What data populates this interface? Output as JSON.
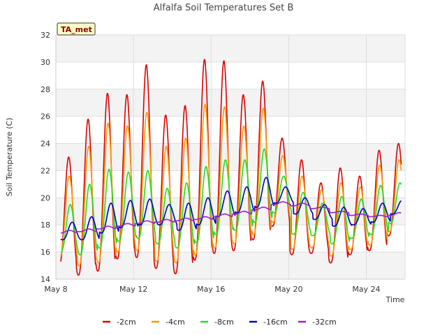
{
  "chart_data": {
    "type": "line",
    "title": "Alfalfa Soil Temperatures Set B",
    "xlabel": "Time",
    "ylabel": "Soil Temperature (C)",
    "ylim": [
      14,
      32
    ],
    "yticks": [
      14,
      16,
      18,
      20,
      22,
      24,
      26,
      28,
      30,
      32
    ],
    "xlim": [
      "2013-05-08",
      "2013-05-26"
    ],
    "xticks": [
      {
        "date": "2013-05-08",
        "label": "May 8"
      },
      {
        "date": "2013-05-12",
        "label": "May 12"
      },
      {
        "date": "2013-05-16",
        "label": "May 16"
      },
      {
        "date": "2013-05-20",
        "label": "May 20"
      },
      {
        "date": "2013-05-24",
        "label": "May 24"
      }
    ],
    "grid": true,
    "legend_position": "bottom",
    "badge": "TA_met",
    "daily_extremes_note": "Each series listed as daily [min, max] from May 8 to May 25",
    "series": [
      {
        "name": "-2cm",
        "color": "#dd0000",
        "daily_min": [
          15.0,
          14.3,
          14.6,
          15.5,
          15.6,
          14.8,
          14.4,
          15.4,
          15.9,
          16.1,
          16.9,
          17.9,
          15.8,
          15.9,
          15.2,
          15.8,
          16.1,
          17.2
        ],
        "daily_max": [
          23.0,
          25.8,
          27.7,
          27.6,
          29.8,
          26.1,
          26.8,
          30.2,
          30.1,
          27.6,
          28.6,
          24.4,
          22.8,
          21.1,
          22.2,
          21.6,
          23.5,
          24.0
        ]
      },
      {
        "name": "-4cm",
        "color": "#ff9900",
        "daily_min": [
          15.6,
          15.0,
          15.2,
          16.0,
          16.1,
          15.3,
          15.2,
          15.8,
          16.3,
          16.6,
          17.3,
          18.2,
          16.2,
          16.3,
          15.7,
          16.2,
          16.5,
          17.5
        ],
        "daily_max": [
          21.6,
          23.8,
          25.5,
          25.3,
          26.3,
          23.8,
          24.4,
          26.9,
          26.7,
          25.3,
          26.6,
          23.1,
          21.6,
          20.6,
          21.1,
          20.8,
          22.4,
          22.8
        ]
      },
      {
        "name": "-8cm",
        "color": "#22dd22",
        "daily_min": [
          16.0,
          15.8,
          16.3,
          16.8,
          17.0,
          16.6,
          16.3,
          16.7,
          17.3,
          17.6,
          18.2,
          18.9,
          17.3,
          17.2,
          16.6,
          17.0,
          17.3,
          18.1
        ],
        "daily_max": [
          19.5,
          21.0,
          22.1,
          21.9,
          22.0,
          20.7,
          21.1,
          22.3,
          22.8,
          22.8,
          23.6,
          21.6,
          20.4,
          19.6,
          20.1,
          19.9,
          20.9,
          21.1
        ]
      },
      {
        "name": "-16cm",
        "color": "#0000bb",
        "daily_min": [
          16.9,
          16.9,
          17.4,
          17.8,
          18.0,
          18.0,
          17.6,
          18.0,
          18.6,
          18.9,
          19.3,
          19.6,
          18.8,
          18.4,
          17.9,
          18.0,
          18.2,
          18.8
        ],
        "daily_max": [
          18.2,
          18.6,
          19.6,
          19.8,
          19.9,
          19.5,
          19.6,
          20.0,
          20.5,
          20.8,
          21.5,
          20.8,
          20.0,
          19.5,
          19.3,
          19.2,
          19.6,
          19.8
        ]
      },
      {
        "name": "-32cm",
        "color": "#9922cc",
        "daily_min": [
          17.4,
          17.5,
          17.7,
          17.9,
          18.1,
          18.2,
          18.3,
          18.4,
          18.6,
          18.8,
          19.1,
          19.5,
          19.4,
          19.2,
          18.9,
          18.7,
          18.6,
          18.7
        ],
        "daily_max": [
          17.6,
          17.7,
          17.9,
          18.1,
          18.3,
          18.4,
          18.5,
          18.6,
          18.8,
          19.0,
          19.3,
          19.7,
          19.6,
          19.3,
          19.0,
          18.8,
          18.7,
          18.9
        ]
      }
    ]
  }
}
